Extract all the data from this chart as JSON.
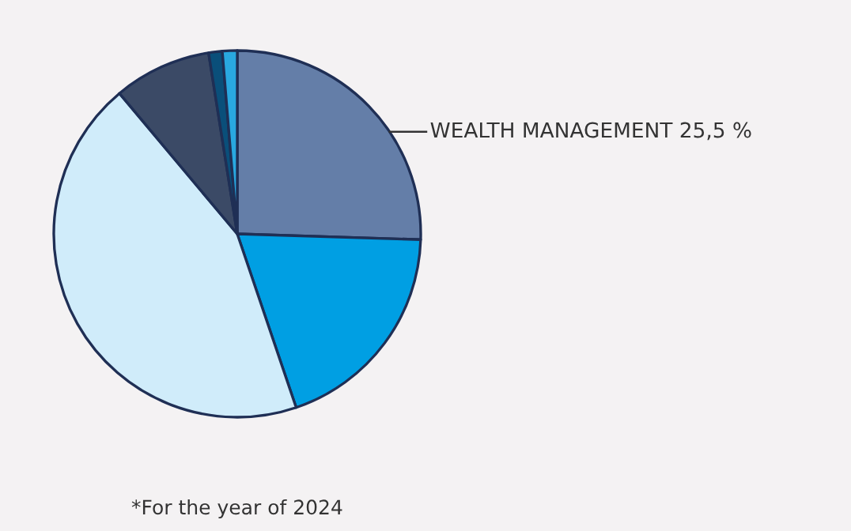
{
  "chart_data": {
    "type": "pie",
    "categories": [
      "WEALTH MANAGEMENT",
      null,
      null,
      null,
      null,
      null
    ],
    "values": [
      25.5,
      19.3,
      44.1,
      8.6,
      1.2,
      1.3
    ],
    "value_labels": [
      "25,5 %",
      null,
      null,
      null,
      null,
      null
    ],
    "colors": [
      "#647ea8",
      "#009fe3",
      "#d0ecfa",
      "#3b4a66",
      "#0a4f7a",
      "#29a8e0"
    ],
    "annotations": [
      "*For the year of 2024"
    ]
  }
}
